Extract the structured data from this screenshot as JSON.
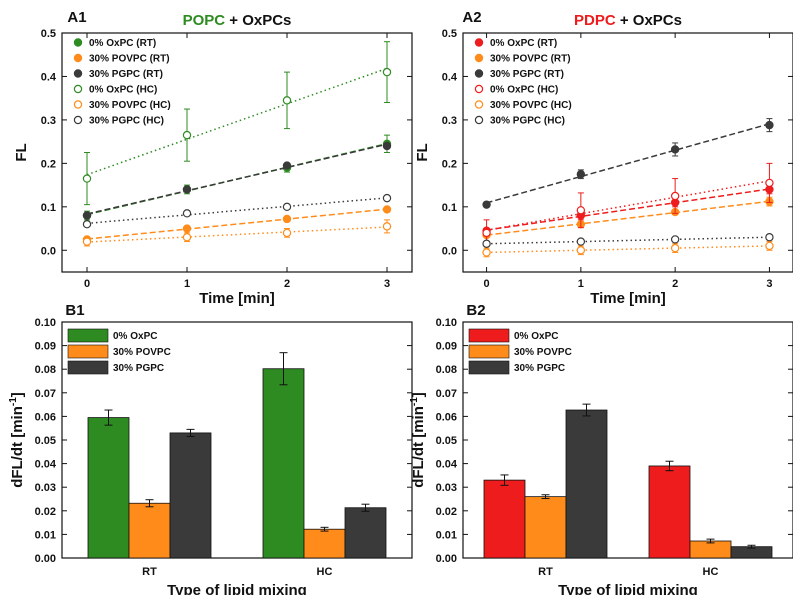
{
  "colors": {
    "green": "#2e8b22",
    "orange": "#ff8c1a",
    "dark": "#3a3a3a",
    "red": "#ee1c1c"
  },
  "chart_data": [
    {
      "panel": "A1",
      "type": "scatter",
      "title_prefix": "POPC",
      "title_prefix_color": "#2e8b22",
      "title_suffix": "+ OxPCs",
      "xlabel": "Time [min]",
      "ylabel": "FL",
      "xlim": [
        -0.25,
        3.25
      ],
      "ylim": [
        -0.05,
        0.5
      ],
      "xticks": [
        "0",
        "1",
        "2",
        "3"
      ],
      "yticks": [
        "0.0",
        "0.1",
        "0.2",
        "0.3",
        "0.4",
        "0.5"
      ],
      "legend_position": "top-left",
      "x": [
        0,
        1,
        2,
        3
      ],
      "series": [
        {
          "name": "0% OxPC (RT)",
          "color": "#2e8b22",
          "filled": true,
          "line": "dashed",
          "values": [
            0.08,
            0.14,
            0.19,
            0.245
          ],
          "err": [
            0.01,
            0.01,
            0.01,
            0.02
          ]
        },
        {
          "name": "30% POVPC (RT)",
          "color": "#ff8c1a",
          "filled": true,
          "line": "dashed",
          "values": [
            0.025,
            0.05,
            0.072,
            0.094
          ],
          "err": [
            0.005,
            0.005,
            0.005,
            0.005
          ]
        },
        {
          "name": "30% PGPC (RT)",
          "color": "#3a3a3a",
          "filled": true,
          "line": "dashed",
          "values": [
            0.08,
            0.14,
            0.195,
            0.24
          ],
          "err": [
            0.005,
            0.005,
            0.005,
            0.005
          ]
        },
        {
          "name": "0% OxPC (HC)",
          "color": "#2e8b22",
          "filled": false,
          "line": "dotted",
          "values": [
            0.165,
            0.265,
            0.345,
            0.41
          ],
          "err": [
            0.06,
            0.06,
            0.065,
            0.07
          ]
        },
        {
          "name": "30% POVPC (HC)",
          "color": "#ff8c1a",
          "filled": false,
          "line": "dotted",
          "values": [
            0.02,
            0.03,
            0.04,
            0.055
          ],
          "err": [
            0.01,
            0.01,
            0.01,
            0.015
          ]
        },
        {
          "name": "30% PGPC (HC)",
          "color": "#3a3a3a",
          "filled": false,
          "line": "dotted",
          "values": [
            0.06,
            0.085,
            0.1,
            0.12
          ],
          "err": [
            0.005,
            0.005,
            0.005,
            0.005
          ]
        }
      ]
    },
    {
      "panel": "A2",
      "type": "scatter",
      "title_prefix": "PDPC",
      "title_prefix_color": "#ee1c1c",
      "title_suffix": "+ OxPCs",
      "xlabel": "Time [min]",
      "ylabel": "FL",
      "xlim": [
        -0.25,
        3.25
      ],
      "ylim": [
        -0.05,
        0.5
      ],
      "xticks": [
        "0",
        "1",
        "2",
        "3"
      ],
      "yticks": [
        "0.0",
        "0.1",
        "0.2",
        "0.3",
        "0.4",
        "0.5"
      ],
      "legend_position": "top-left",
      "x": [
        0,
        1,
        2,
        3
      ],
      "series": [
        {
          "name": "0% OxPC (RT)",
          "color": "#ee1c1c",
          "filled": true,
          "line": "dashed",
          "values": [
            0.045,
            0.08,
            0.11,
            0.14
          ],
          "err": [
            0.005,
            0.01,
            0.01,
            0.01
          ]
        },
        {
          "name": "30% POVPC (RT)",
          "color": "#ff8c1a",
          "filled": true,
          "line": "dashed",
          "values": [
            0.035,
            0.06,
            0.088,
            0.112
          ],
          "err": [
            0.005,
            0.005,
            0.005,
            0.01
          ]
        },
        {
          "name": "30% PGPC (RT)",
          "color": "#3a3a3a",
          "filled": true,
          "line": "dashed",
          "values": [
            0.105,
            0.175,
            0.232,
            0.288
          ],
          "err": [
            0.005,
            0.01,
            0.015,
            0.015
          ]
        },
        {
          "name": "0% OxPC (HC)",
          "color": "#ee1c1c",
          "filled": false,
          "line": "dotted",
          "values": [
            0.04,
            0.092,
            0.125,
            0.155
          ],
          "err": [
            0.03,
            0.04,
            0.04,
            0.045
          ]
        },
        {
          "name": "30% POVPC (HC)",
          "color": "#ff8c1a",
          "filled": false,
          "line": "dotted",
          "values": [
            -0.005,
            0.0,
            0.005,
            0.01
          ],
          "err": [
            0.01,
            0.01,
            0.01,
            0.01
          ]
        },
        {
          "name": "30% PGPC (HC)",
          "color": "#3a3a3a",
          "filled": false,
          "line": "dotted",
          "values": [
            0.015,
            0.02,
            0.025,
            0.03
          ],
          "err": [
            0.005,
            0.005,
            0.005,
            0.005
          ]
        }
      ]
    },
    {
      "panel": "B1",
      "type": "bar",
      "xlabel": "Type of lipid mixing",
      "ylabel": "dFL/dt [min",
      "ylabel_sup": "-1",
      "ylabel_end": "]",
      "ylim": [
        0,
        0.1
      ],
      "yticks": [
        "0.00",
        "0.01",
        "0.02",
        "0.03",
        "0.04",
        "0.05",
        "0.06",
        "0.07",
        "0.08",
        "0.09",
        "0.10"
      ],
      "legend_position": "top-left",
      "categories": [
        "RT",
        "HC"
      ],
      "series": [
        {
          "name": "0% OxPC",
          "color": "#2e8b22",
          "values": [
            0.0595,
            0.0802
          ],
          "err": [
            0.0032,
            0.0068
          ]
        },
        {
          "name": "30% POVPC",
          "color": "#ff8c1a",
          "values": [
            0.0232,
            0.0122
          ],
          "err": [
            0.0015,
            0.0008
          ]
        },
        {
          "name": "30% PGPC",
          "color": "#3a3a3a",
          "values": [
            0.053,
            0.0213
          ],
          "err": [
            0.0015,
            0.0015
          ]
        }
      ]
    },
    {
      "panel": "B2",
      "type": "bar",
      "xlabel": "Type of lipid mixing",
      "ylabel": "dFL/dt [min",
      "ylabel_sup": "-1",
      "ylabel_end": "]",
      "ylim": [
        0,
        0.1
      ],
      "yticks": [
        "0.00",
        "0.01",
        "0.02",
        "0.03",
        "0.04",
        "0.05",
        "0.06",
        "0.07",
        "0.08",
        "0.09",
        "0.10"
      ],
      "legend_position": "top-left",
      "categories": [
        "RT",
        "HC"
      ],
      "series": [
        {
          "name": "0% OxPC",
          "color": "#ee1c1c",
          "values": [
            0.033,
            0.039
          ],
          "err": [
            0.0022,
            0.002
          ]
        },
        {
          "name": "30% POVPC",
          "color": "#ff8c1a",
          "values": [
            0.026,
            0.0072
          ],
          "err": [
            0.0008,
            0.0008
          ]
        },
        {
          "name": "30% PGPC",
          "color": "#3a3a3a",
          "values": [
            0.0627,
            0.0048
          ],
          "err": [
            0.0025,
            0.0006
          ]
        }
      ]
    }
  ]
}
